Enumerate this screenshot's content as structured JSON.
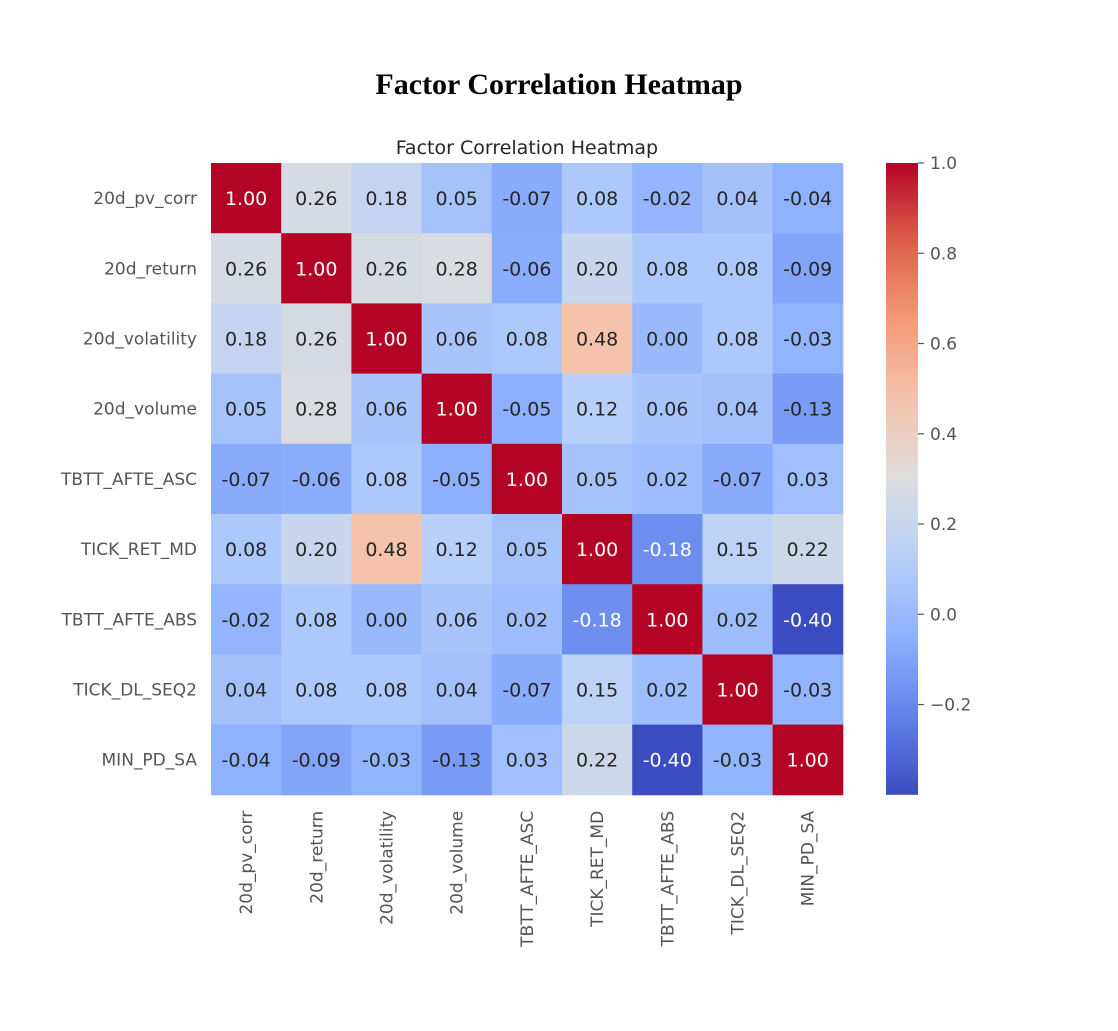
{
  "page_title": "Factor Correlation Heatmap",
  "chart_data": {
    "type": "heatmap",
    "title": "Factor Correlation Heatmap",
    "xlabel": "",
    "ylabel": "",
    "rows": [
      "20d_pv_corr",
      "20d_return",
      "20d_volatility",
      "20d_volume",
      "TBTT_AFTE_ASC",
      "TICK_RET_MD",
      "TBTT_AFTE_ABS",
      "TICK_DL_SEQ2",
      "MIN_PD_SA"
    ],
    "columns": [
      "20d_pv_corr",
      "20d_return",
      "20d_volatility",
      "20d_volume",
      "TBTT_AFTE_ASC",
      "TICK_RET_MD",
      "TBTT_AFTE_ABS",
      "TICK_DL_SEQ2",
      "MIN_PD_SA"
    ],
    "values": [
      [
        1.0,
        0.26,
        0.18,
        0.05,
        -0.07,
        0.08,
        -0.02,
        0.04,
        -0.04
      ],
      [
        0.26,
        1.0,
        0.26,
        0.28,
        -0.06,
        0.2,
        0.08,
        0.08,
        -0.09
      ],
      [
        0.18,
        0.26,
        1.0,
        0.06,
        0.08,
        0.48,
        -0.0,
        0.08,
        -0.03
      ],
      [
        0.05,
        0.28,
        0.06,
        1.0,
        -0.05,
        0.12,
        0.06,
        0.04,
        -0.13
      ],
      [
        -0.07,
        -0.06,
        0.08,
        -0.05,
        1.0,
        0.05,
        0.02,
        -0.07,
        0.03
      ],
      [
        0.08,
        0.2,
        0.48,
        0.12,
        0.05,
        1.0,
        -0.18,
        0.15,
        0.22
      ],
      [
        -0.02,
        0.08,
        -0.0,
        0.06,
        0.02,
        -0.18,
        1.0,
        0.02,
        -0.4
      ],
      [
        0.04,
        0.08,
        0.08,
        0.04,
        -0.07,
        0.15,
        0.02,
        1.0,
        -0.03
      ],
      [
        -0.04,
        -0.09,
        -0.03,
        -0.13,
        0.03,
        0.22,
        -0.4,
        -0.03,
        1.0
      ]
    ],
    "annotation_format": "0.00",
    "colormap": "coolwarm",
    "color_range": [
      -0.4,
      1.0
    ],
    "colorbar_ticks": [
      1.0,
      0.8,
      0.6,
      0.4,
      0.2,
      0.0,
      -0.2
    ],
    "colorbar_tick_labels": [
      "1.0",
      "0.8",
      "0.6",
      "0.4",
      "0.2",
      "0.0",
      "−0.2"
    ],
    "colorbar_placement": "right",
    "grid": false,
    "legend": "none"
  }
}
